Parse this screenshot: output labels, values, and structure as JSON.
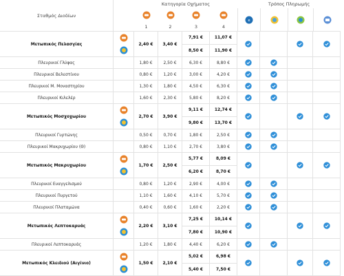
{
  "header": {
    "station": "Σταθμός Διοδίων",
    "category": "Κατηγορία Οχήματος",
    "payment": "Τρόπος Πληρωμής",
    "category_numbers": [
      "1",
      "2",
      "3",
      "4"
    ]
  },
  "rows": [
    {
      "name": "Μετωπικός Πελασγίας",
      "main": true,
      "prices": [
        "2,40 €",
        "3,40 €",
        [
          "7,91 €",
          "8,50 €"
        ],
        [
          "11,07 €",
          "11,90 €"
        ]
      ],
      "payment": [
        true,
        false,
        true,
        true
      ]
    },
    {
      "name": "Πλευρικοί Γλύφας",
      "main": false,
      "prices": [
        "1,80 €",
        "2,50 €",
        "6,30 €",
        "8,80 €"
      ],
      "payment": [
        true,
        true,
        false,
        false
      ]
    },
    {
      "name": "Πλευρικοί Βελεστίνου",
      "main": false,
      "prices": [
        "0,80 €",
        "1,20 €",
        "3,00 €",
        "4,20 €"
      ],
      "payment": [
        true,
        true,
        false,
        false
      ]
    },
    {
      "name": "Πλευρικοί Μ. Μοναστηρίου",
      "main": false,
      "prices": [
        "1,30 €",
        "1,80 €",
        "4,50 €",
        "6,30 €"
      ],
      "payment": [
        true,
        true,
        false,
        false
      ]
    },
    {
      "name": "Πλευρικοί Κιλελέρ",
      "main": false,
      "prices": [
        "1,60 €",
        "2,30 €",
        "5,80 €",
        "8,20 €"
      ],
      "payment": [
        true,
        true,
        false,
        false
      ]
    },
    {
      "name": "Μετωπικός Μοσχοχωρίου",
      "main": true,
      "prices": [
        "2,70 €",
        "3,90 €",
        [
          "9,11 €",
          "9,80 €"
        ],
        [
          "12,74 €",
          "13,70 €"
        ]
      ],
      "payment": [
        true,
        false,
        true,
        true
      ]
    },
    {
      "name": "Πλευρικοί Γυρτώνης",
      "main": false,
      "prices": [
        "0,50 €",
        "0,70 €",
        "1,80 €",
        "2,50 €"
      ],
      "payment": [
        true,
        true,
        false,
        false
      ]
    },
    {
      "name": "Πλευρικοί Μακρυχωρίου (Θ)",
      "main": false,
      "prices": [
        "0,80 €",
        "1,10 €",
        "2,70 €",
        "3,80 €"
      ],
      "payment": [
        true,
        true,
        false,
        false
      ]
    },
    {
      "name": "Μετωπικός Μακρυχωρίου",
      "main": true,
      "prices": [
        "1,70 €",
        "2,50 €",
        [
          "5,77 €",
          "6,20 €"
        ],
        [
          "8,09 €",
          "8,70 €"
        ]
      ],
      "payment": [
        true,
        false,
        true,
        true
      ]
    },
    {
      "name": "Πλευρικοί Ευαγγελισμού",
      "main": false,
      "prices": [
        "0,80 €",
        "1,20 €",
        "2,90 €",
        "4,00 €"
      ],
      "payment": [
        true,
        true,
        false,
        false
      ]
    },
    {
      "name": "Πλευρικοί Πυργετού",
      "main": false,
      "prices": [
        "1,10 €",
        "1,60 €",
        "4,10 €",
        "5,70 €"
      ],
      "payment": [
        true,
        true,
        false,
        false
      ]
    },
    {
      "name": "Πλευρικοί Πλαταμώνα",
      "main": false,
      "prices": [
        "0,40 €",
        "0,60 €",
        "1,60 €",
        "2,20 €"
      ],
      "payment": [
        true,
        true,
        false,
        false
      ]
    },
    {
      "name": "Μετωπικός Λεπτοκαρυάς",
      "main": true,
      "prices": [
        "2,20 €",
        "3,10 €",
        [
          "7,25 €",
          "7,80 €"
        ],
        [
          "10,14 €",
          "10,90 €"
        ]
      ],
      "payment": [
        true,
        false,
        true,
        true
      ]
    },
    {
      "name": "Πλευρικοί Λεπτοκαρυάς",
      "main": false,
      "prices": [
        "1,20 €",
        "1,80 €",
        "4,40 €",
        "6,20 €"
      ],
      "payment": [
        true,
        true,
        false,
        false
      ]
    },
    {
      "name": "Μετωπικός Κλειδιού (Αιγίνιο)",
      "main": true,
      "prices": [
        "1,50 €",
        "2,10 €",
        [
          "5,02 €",
          "5,40 €"
        ],
        [
          "6,98 €",
          "7,50 €"
        ]
      ],
      "payment": [
        true,
        false,
        true,
        true
      ]
    }
  ]
}
